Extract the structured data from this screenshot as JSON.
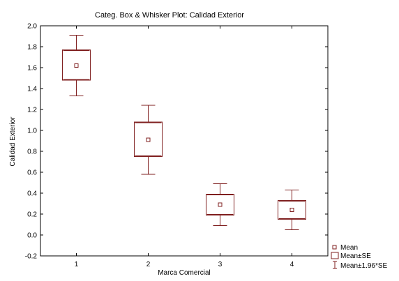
{
  "chart_data": {
    "type": "box",
    "title": "Categ. Box & Whisker Plot: Calidad Exterior",
    "xlabel": "Marca Comercial",
    "ylabel": "Calidad Exterior",
    "ylim": [
      -0.2,
      2.0
    ],
    "yticks": [
      -0.2,
      0.0,
      0.2,
      0.4,
      0.6,
      0.8,
      1.0,
      1.2,
      1.4,
      1.6,
      1.8,
      2.0
    ],
    "ytick_labels": [
      "-0.2",
      "0.0",
      "0.2",
      "0.4",
      "0.6",
      "0.8",
      "1.0",
      "1.2",
      "1.4",
      "1.6",
      "1.8",
      "2.0"
    ],
    "categories": [
      "1",
      "2",
      "3",
      "4"
    ],
    "mean": [
      1.62,
      0.91,
      0.29,
      0.24
    ],
    "se_low": [
      1.48,
      0.75,
      0.19,
      0.15
    ],
    "se_high": [
      1.77,
      1.08,
      0.39,
      0.33
    ],
    "ci_low": [
      1.33,
      0.58,
      0.09,
      0.05
    ],
    "ci_high": [
      1.91,
      1.24,
      0.49,
      0.43
    ],
    "legend": [
      "Mean",
      "Mean±SE",
      "Mean±1.96*SE"
    ],
    "legend_position": "bottom-right",
    "grid": false,
    "color": "#7f1f1f"
  }
}
